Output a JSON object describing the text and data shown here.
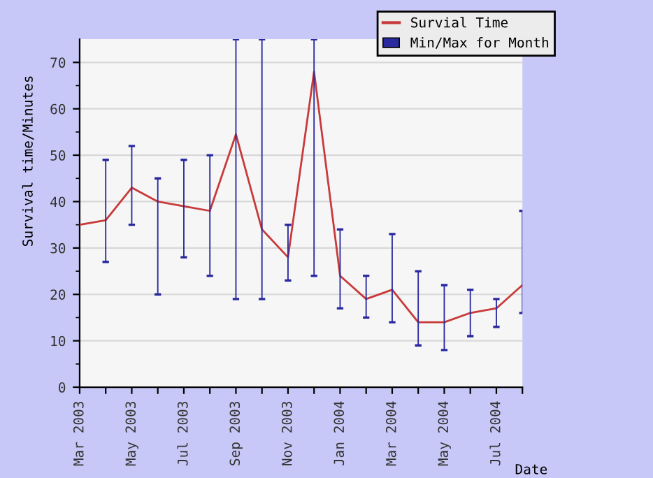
{
  "chart_data": {
    "type": "line",
    "ylabel": "Survival time/Minutes",
    "xlabel": "Date",
    "categories": [
      "Mar 2003",
      null,
      "May 2003",
      null,
      "Jul 2003",
      null,
      "Sep 2003",
      null,
      "Nov 2003",
      null,
      "Jan 2004",
      null,
      "Mar 2004",
      null,
      "May 2004",
      null,
      "Jul 2004",
      null
    ],
    "series": [
      {
        "name": "Survial Time",
        "color": "#c83a3a",
        "values": [
          35,
          36,
          43,
          40,
          39,
          38,
          54.5,
          34,
          28,
          68,
          24,
          19,
          21,
          14,
          14,
          16,
          17,
          22
        ]
      },
      {
        "name": "Min/Max for Month",
        "type": "bar",
        "color": "#2a2aa0",
        "values": [
          null,
          22,
          17,
          25,
          21,
          26,
          56,
          56,
          12,
          51,
          17,
          9,
          19,
          16,
          14,
          10,
          6,
          22
        ],
        "base": [
          null,
          27,
          35,
          20,
          28,
          24,
          19,
          19,
          23,
          24,
          17,
          15,
          14,
          9,
          8,
          11,
          13,
          16
        ]
      }
    ],
    "ylim": [
      0,
      75
    ],
    "yticks": [
      0,
      10,
      20,
      30,
      40,
      50,
      60,
      70
    ],
    "grid": "y",
    "legend": "top right"
  }
}
